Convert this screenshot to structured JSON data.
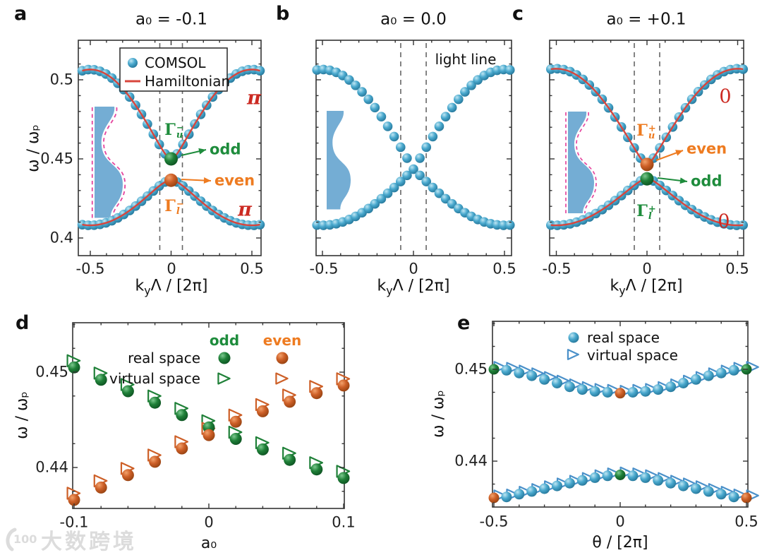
{
  "watermark": {
    "logo": "100",
    "text": "大数跨境"
  },
  "colors": {
    "blue_marker": "#3f9fc6",
    "green_marker": "#1f8038",
    "orange_marker": "#cd5f27",
    "red_line": "#d8453c",
    "red_text": "#cc2a22",
    "green_text": "#1e8c3c",
    "orange_text": "#ee7b20",
    "axis": "#333333",
    "dash_gray": "#666666",
    "inset_blue": "#74add4",
    "magenta_dash": "#e5469e"
  },
  "panels": {
    "a": {
      "letter": "a",
      "title": "a₀ = -0.1",
      "legend": {
        "comsol": "COMSOL",
        "hamiltonian": "Hamiltonian"
      },
      "ylabel": "ω / ωₚ",
      "yticks": [
        "0.5",
        "0.45",
        "0.4"
      ],
      "xticks": [
        "-0.5",
        "0",
        "0.5"
      ],
      "xlabel": {
        "pre": "k",
        "sub": "y",
        "post": "Λ / [2π]"
      },
      "gamma_u": {
        "base": "Γ",
        "sup": "−",
        "sub": "u"
      },
      "gamma_l": {
        "base": "Γ",
        "sup": "−",
        "sub": "l"
      },
      "odd": "odd",
      "even": "even",
      "pi_upper": "π",
      "pi_lower": "π"
    },
    "b": {
      "letter": "b",
      "title": "a₀ = 0.0",
      "light_line": "light line",
      "xticks": [
        "-0.5",
        "0",
        "0.5"
      ],
      "xlabel": {
        "pre": "k",
        "sub": "y",
        "post": "Λ / [2π]"
      }
    },
    "c": {
      "letter": "c",
      "title": "a₀ = +0.1",
      "xticks": [
        "-0.5",
        "0",
        "0.5"
      ],
      "xlabel": {
        "pre": "k",
        "sub": "y",
        "post": "Λ / [2π]"
      },
      "gamma_u": {
        "base": "Γ",
        "sup": "+",
        "sub": "u"
      },
      "gamma_l": {
        "base": "Γ",
        "sup": "+",
        "sub": "l"
      },
      "odd": "odd",
      "even": "even",
      "zero_upper": "0",
      "zero_lower": "0"
    },
    "d": {
      "letter": "d",
      "col_odd": "odd",
      "col_even": "even",
      "row_real": "real space",
      "row_virtual": "virtual space",
      "ylabel": "ω / ωₚ",
      "yticks": [
        "0.45",
        "0.44"
      ],
      "xticks": [
        "-0.1",
        "0",
        "0.1"
      ],
      "xlabel": "a₀"
    },
    "e": {
      "letter": "e",
      "legend_real": "real space",
      "legend_virtual": "virtual space",
      "ylabel": "ω / ωₚ",
      "yticks": [
        "0.45",
        "0.44"
      ],
      "xticks": [
        "-0.5",
        "0",
        "0.5"
      ],
      "xlabel": "θ / [2π]"
    }
  },
  "chart_data": [
    {
      "id": "a",
      "type": "scatter",
      "title": "a0 = -0.1",
      "xlabel": "kyΛ/[2π]",
      "ylabel": "ω/ωp",
      "xticks": [
        -0.5,
        0,
        0.5
      ],
      "yticks": [
        0.4,
        0.45,
        0.5
      ],
      "xlim": [
        -0.57,
        0.56
      ],
      "ylim": [
        0.389,
        0.525
      ],
      "k_range": [
        -0.55,
        0.55
      ],
      "n_dots": 31,
      "light_line_k": 0.07,
      "upper_band": {
        "gamma_freq": 0.45,
        "edge_freq": 0.5065,
        "gamma_state": "odd",
        "zak_phase": "π"
      },
      "lower_band": {
        "gamma_freq": 0.4365,
        "edge_freq": 0.408,
        "gamma_state": "even",
        "zak_phase": "π"
      },
      "hamiltonian_fit": true
    },
    {
      "id": "b",
      "type": "scatter",
      "title": "a0 = 0.0",
      "xlabel": "kyΛ/[2π]",
      "xticks": [
        -0.5,
        0,
        0.5
      ],
      "yticks": [
        0.4,
        0.45,
        0.5
      ],
      "xlim": [
        -0.54,
        0.54
      ],
      "ylim": [
        0.389,
        0.525
      ],
      "k_range": [
        -0.53,
        0.53
      ],
      "n_dots": 31,
      "light_line_k": 0.07,
      "crossing_freq": 0.4435,
      "upper_edge_freq": 0.5065,
      "lower_edge_freq": 0.408,
      "hamiltonian_fit": false
    },
    {
      "id": "c",
      "type": "scatter",
      "title": "a0 = +0.1",
      "xlabel": "kyΛ/[2π]",
      "xticks": [
        -0.5,
        0,
        0.5
      ],
      "yticks": [
        0.4,
        0.45,
        0.5
      ],
      "xlim": [
        -0.54,
        0.54
      ],
      "ylim": [
        0.389,
        0.525
      ],
      "k_range": [
        -0.53,
        0.53
      ],
      "n_dots": 31,
      "light_line_k": 0.07,
      "upper_band": {
        "gamma_freq": 0.4465,
        "edge_freq": 0.507,
        "gamma_state": "even",
        "zak_phase": "0"
      },
      "lower_band": {
        "gamma_freq": 0.4374,
        "edge_freq": 0.408,
        "gamma_state": "odd",
        "zak_phase": "0"
      },
      "hamiltonian_fit": true
    },
    {
      "id": "d",
      "type": "scatter",
      "xlabel": "a0",
      "ylabel": "ω/ωp",
      "xticks": [
        -0.1,
        0,
        0.1
      ],
      "yticks": [
        0.44,
        0.45
      ],
      "xlim": [
        -0.101,
        0.101
      ],
      "ylim": [
        0.4357,
        0.4552
      ],
      "x": [
        -0.1,
        -0.08,
        -0.06,
        -0.04,
        -0.02,
        0,
        0.02,
        0.04,
        0.06,
        0.08,
        0.1
      ],
      "series": [
        {
          "name": "odd real space",
          "color": "green",
          "marker": "sphere",
          "values": [
            0.4505,
            0.4492,
            0.448,
            0.4468,
            0.4455,
            0.4442,
            0.443,
            0.4419,
            0.4408,
            0.4398,
            0.4389
          ]
        },
        {
          "name": "even real space",
          "color": "orange",
          "marker": "sphere",
          "values": [
            0.4366,
            0.4379,
            0.4392,
            0.4406,
            0.442,
            0.4434,
            0.4448,
            0.4459,
            0.4469,
            0.4478,
            0.4486
          ]
        }
      ],
      "virtual_offset": {
        "dx": -0.0012,
        "dy": 0.0007
      }
    },
    {
      "id": "e",
      "type": "scatter",
      "xlabel": "θ/[2π]",
      "ylabel": "ω/ωp",
      "xticks": [
        -0.5,
        0,
        0.5
      ],
      "yticks": [
        0.44,
        0.45
      ],
      "xlim": [
        -0.505,
        0.506
      ],
      "ylim": [
        0.435,
        0.4552
      ],
      "x": [
        -0.5,
        -0.45,
        -0.4,
        -0.35,
        -0.3,
        -0.25,
        -0.2,
        -0.15,
        -0.1,
        -0.05,
        0,
        0.05,
        0.1,
        0.15,
        0.2,
        0.25,
        0.3,
        0.35,
        0.4,
        0.45,
        0.5
      ],
      "upper_values": [
        0.45,
        0.4499,
        0.4496,
        0.4493,
        0.4489,
        0.4485,
        0.4481,
        0.4478,
        0.4476,
        0.4475,
        0.4474,
        0.4475,
        0.4476,
        0.4478,
        0.4481,
        0.4485,
        0.4489,
        0.4493,
        0.4496,
        0.4499,
        0.45
      ],
      "lower_values": [
        0.436,
        0.4361,
        0.4364,
        0.4367,
        0.437,
        0.4373,
        0.4376,
        0.4379,
        0.4382,
        0.4384,
        0.4385,
        0.4384,
        0.4382,
        0.4379,
        0.4376,
        0.4373,
        0.437,
        0.4367,
        0.4364,
        0.4361,
        0.436
      ],
      "upper_special": {
        "0": "green",
        "10": "orange",
        "20": "green"
      },
      "lower_special": {
        "0": "orange",
        "10": "green",
        "20": "orange"
      },
      "virtual_offset": {
        "dx": 0.02,
        "dy": 0.00025
      }
    }
  ]
}
